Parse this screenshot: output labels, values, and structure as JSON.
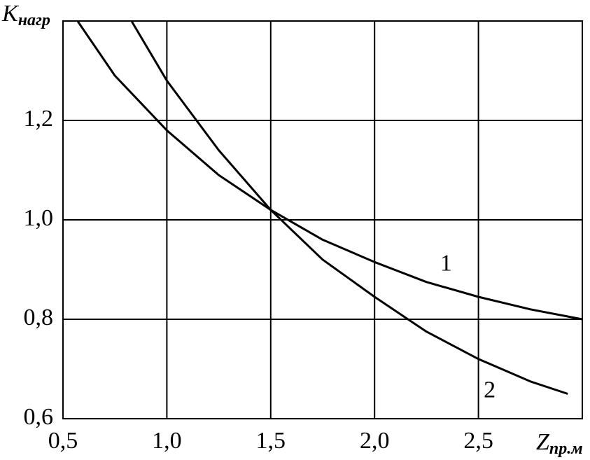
{
  "chart_data": {
    "type": "line",
    "xlabel": "Z",
    "xlabel_subscript": "пр.м",
    "ylabel": "K",
    "ylabel_subscript": "нагр",
    "xlim": [
      0.5,
      3.0
    ],
    "ylim": [
      0.6,
      1.4
    ],
    "xticks": [
      {
        "value": 0.5,
        "label": "0,5"
      },
      {
        "value": 1.0,
        "label": "1,0"
      },
      {
        "value": 1.5,
        "label": "1,5"
      },
      {
        "value": 2.0,
        "label": "2,0"
      },
      {
        "value": 2.5,
        "label": "2,5"
      }
    ],
    "yticks": [
      {
        "value": 0.6,
        "label": "0,6"
      },
      {
        "value": 0.8,
        "label": "0,8"
      },
      {
        "value": 1.0,
        "label": "1,0"
      },
      {
        "value": 1.2,
        "label": "1,2"
      }
    ],
    "grid": true,
    "series": [
      {
        "name": "1",
        "color": "#000000",
        "x": [
          0.57,
          0.75,
          1.0,
          1.25,
          1.5,
          1.75,
          2.0,
          2.25,
          2.5,
          2.75,
          3.0
        ],
        "values": [
          1.4,
          1.29,
          1.18,
          1.09,
          1.02,
          0.96,
          0.915,
          0.875,
          0.845,
          0.82,
          0.8
        ]
      },
      {
        "name": "2",
        "color": "#000000",
        "x": [
          0.83,
          1.0,
          1.25,
          1.5,
          1.75,
          2.0,
          2.25,
          2.5,
          2.75,
          2.93
        ],
        "values": [
          1.4,
          1.28,
          1.14,
          1.02,
          0.92,
          0.845,
          0.775,
          0.72,
          0.675,
          0.65
        ]
      }
    ]
  }
}
